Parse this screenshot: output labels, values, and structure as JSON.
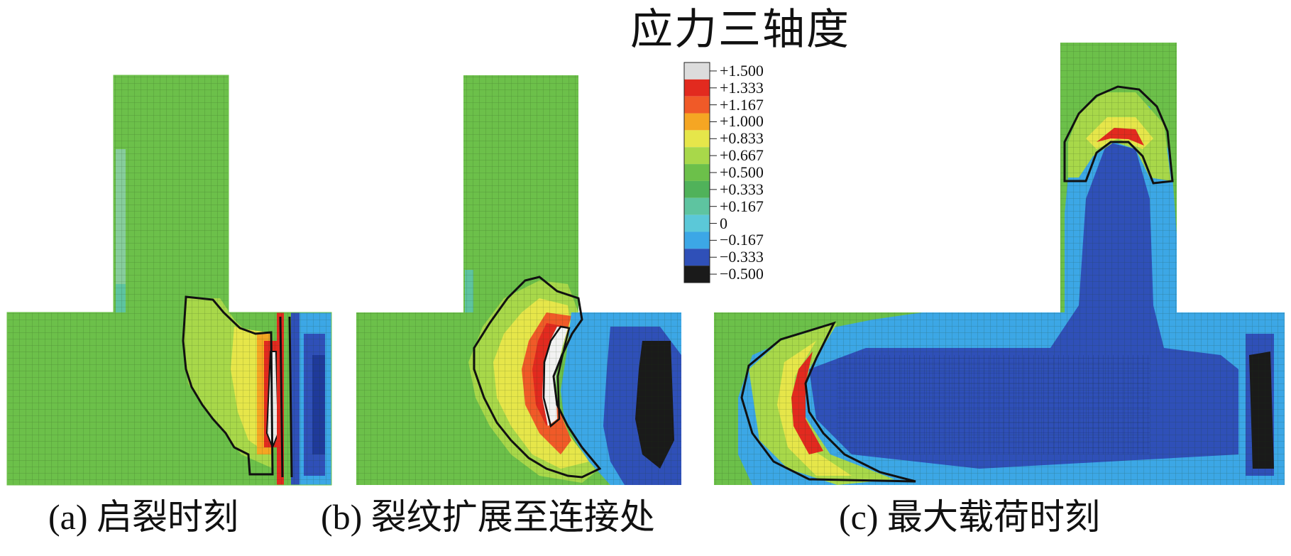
{
  "legend": {
    "title": "应力三轴度",
    "ticks": [
      "+1.500",
      "+1.333",
      "+1.167",
      "+1.000",
      "+0.833",
      "+0.667",
      "+0.500",
      "+0.333",
      "+0.167",
      "0",
      "−0.167",
      "−0.333",
      "−0.500"
    ],
    "colors": [
      "#dcdcdc",
      "#e22a1f",
      "#f05a28",
      "#f5a623",
      "#e6e64a",
      "#a8d84a",
      "#6cc04a",
      "#50b25a",
      "#5ec4a0",
      "#5bc8d8",
      "#3ca7e6",
      "#2f50b8",
      "#1a1a1a"
    ]
  },
  "panels": [
    {
      "caption": "(a) 启裂时刻"
    },
    {
      "caption": "(b) 裂纹扩展至连接处"
    },
    {
      "caption": "(c) 最大载荷时刻"
    }
  ],
  "palette": {
    "green": "#6cc04a",
    "yellow": "#e6e64a",
    "orange": "#f5a623",
    "red": "#e22a1f",
    "white": "#f2f2f2",
    "cyan": "#3ca7e6",
    "blue": "#2f50b8",
    "dark": "#1a1a1a",
    "mesh": "#3a6e2a"
  }
}
